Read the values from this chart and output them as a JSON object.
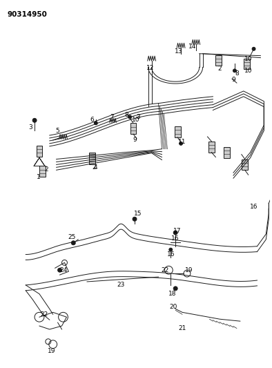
{
  "title": "90314950",
  "bg_color": "#ffffff",
  "line_color": "#1a1a1a",
  "figsize": [
    3.94,
    5.33
  ],
  "dpi": 100,
  "lw": 1.0,
  "tlw": 0.7
}
